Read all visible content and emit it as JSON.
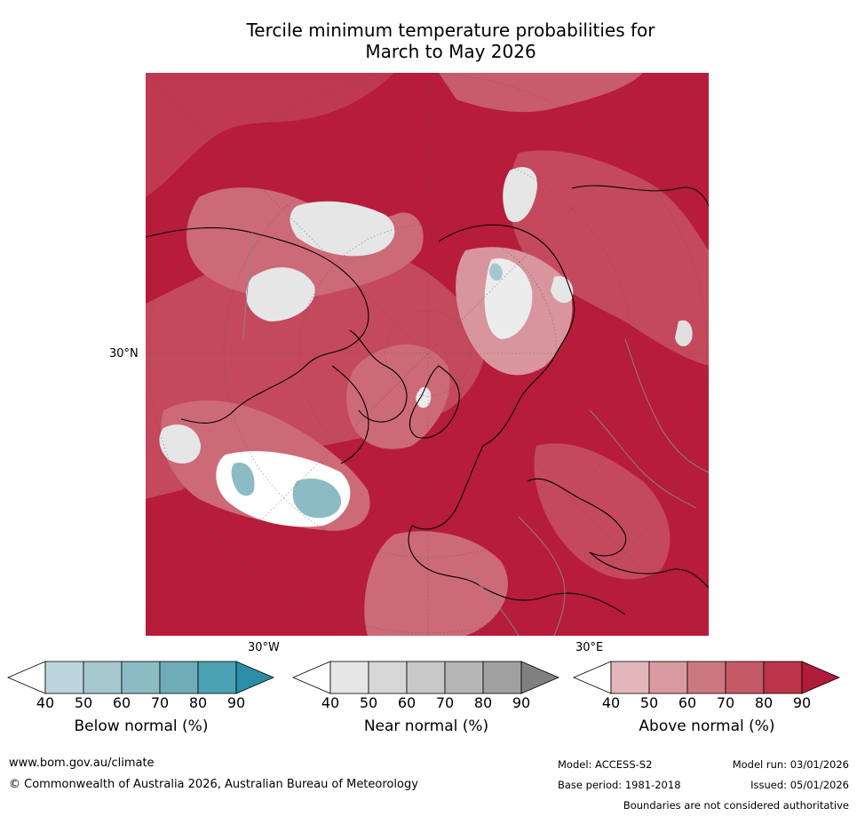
{
  "title_line1": "Tercile minimum temperature probabilities for",
  "title_line2": "March to May 2026",
  "map": {
    "lat_label": "30°N",
    "lon_labels": [
      "30°W",
      "30°E"
    ]
  },
  "colorbars": [
    {
      "name": "below",
      "label": "Below normal (%)",
      "ticks": [
        "40",
        "50",
        "60",
        "70",
        "80",
        "90"
      ],
      "colors": [
        "#ffffff",
        "#bcd5dc",
        "#a5c8cf",
        "#8cbbc3",
        "#6eacb8",
        "#4aa2b3",
        "#2b8ea6"
      ]
    },
    {
      "name": "near",
      "label": "Near normal (%)",
      "ticks": [
        "40",
        "50",
        "60",
        "70",
        "80",
        "90"
      ],
      "colors": [
        "#ffffff",
        "#e6e6e6",
        "#d7d7d7",
        "#c8c8c8",
        "#b5b5b5",
        "#a0a0a0",
        "#808080"
      ]
    },
    {
      "name": "above",
      "label": "Above normal (%)",
      "ticks": [
        "40",
        "50",
        "60",
        "70",
        "80",
        "90"
      ],
      "colors": [
        "#ffffff",
        "#e2b6ba",
        "#d89aa0",
        "#cc7880",
        "#c45a66",
        "#bb3448",
        "#b01b3a"
      ]
    }
  ],
  "footer": {
    "url": "www.bom.gov.au/climate",
    "copyright": "© Commonwealth of Australia 2026, Australian Bureau of Meteorology",
    "model": "Model: ACCESS-S2",
    "model_run": "Model run: 03/01/2026",
    "base_period": "Base period: 1981-2018",
    "issued": "Issued: 05/01/2026",
    "disclaimer": "Boundaries are not considered authoritative"
  }
}
